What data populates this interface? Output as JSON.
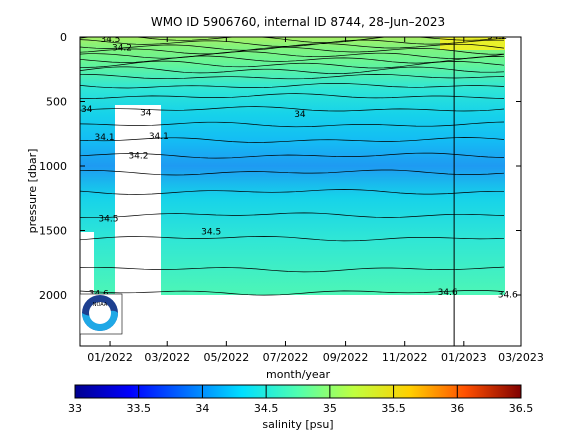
{
  "chart_data": {
    "type": "heatmap",
    "title": "WMO ID 5906760, internal ID 8744, 28–Jun–2023",
    "xlabel": "month/year",
    "ylabel": "pressure [dbar]",
    "x_ticks": [
      "01/2022",
      "03/2022",
      "05/2022",
      "07/2022",
      "09/2022",
      "11/2022",
      "01/2023",
      "03/2023"
    ],
    "y_ticks": [
      "0",
      "500",
      "1000",
      "1500",
      "2000"
    ],
    "ylim": [
      2400,
      0
    ],
    "xlim": [
      "2021-12-01",
      "2023-03-01"
    ],
    "colorbar": {
      "label": "salinity [psu]",
      "ticks": [
        "33",
        "33.5",
        "34",
        "34.5",
        "35",
        "35.5",
        "36",
        "36.5"
      ],
      "range": [
        33,
        36.5
      ]
    },
    "contour_labels": [
      {
        "text": "34.5",
        "x": "2021-12-22",
        "p": 40
      },
      {
        "text": "34.2",
        "x": "2023-01-25",
        "p": 15
      },
      {
        "text": "34.2",
        "x": "2022-01-03",
        "p": 105
      },
      {
        "text": "34",
        "x": "2021-12-02",
        "p": 580
      },
      {
        "text": "34",
        "x": "2022-02-01",
        "p": 610
      },
      {
        "text": "34",
        "x": "2022-07-10",
        "p": 620
      },
      {
        "text": "34.1",
        "x": "2022-02-10",
        "p": 790
      },
      {
        "text": "34.1",
        "x": "2021-12-16",
        "p": 800
      },
      {
        "text": "34.2",
        "x": "2022-01-20",
        "p": 940
      },
      {
        "text": "34.5",
        "x": "2021-12-20",
        "p": 1430
      },
      {
        "text": "34.5",
        "x": "2022-04-05",
        "p": 1530
      },
      {
        "text": "34.6",
        "x": "2021-12-10",
        "p": 2010
      },
      {
        "text": "34.6",
        "x": "2022-12-05",
        "p": 2000
      },
      {
        "text": "34.6",
        "x": "2023-02-05",
        "p": 2020
      }
    ],
    "profile_marks_dates": [
      "2021-12-02",
      "2021-12-12",
      "2022-01-04",
      "2022-01-14",
      "2022-01-24",
      "2022-02-09",
      "2022-02-18"
    ],
    "vertical_marker_date": "2022-12-22",
    "colors": {
      "deep": "#4df6b6",
      "upper_2": "#66f597",
      "upper_1": "#82f37c",
      "surface": "#a8f065",
      "warm_patch": "#e9f02a",
      "mid_1": "#2fe6d6",
      "mid_2": "#16d2ea",
      "mid_3": "#14bdf4",
      "core": "#1e9af2"
    },
    "logo_text": "NOAA"
  }
}
